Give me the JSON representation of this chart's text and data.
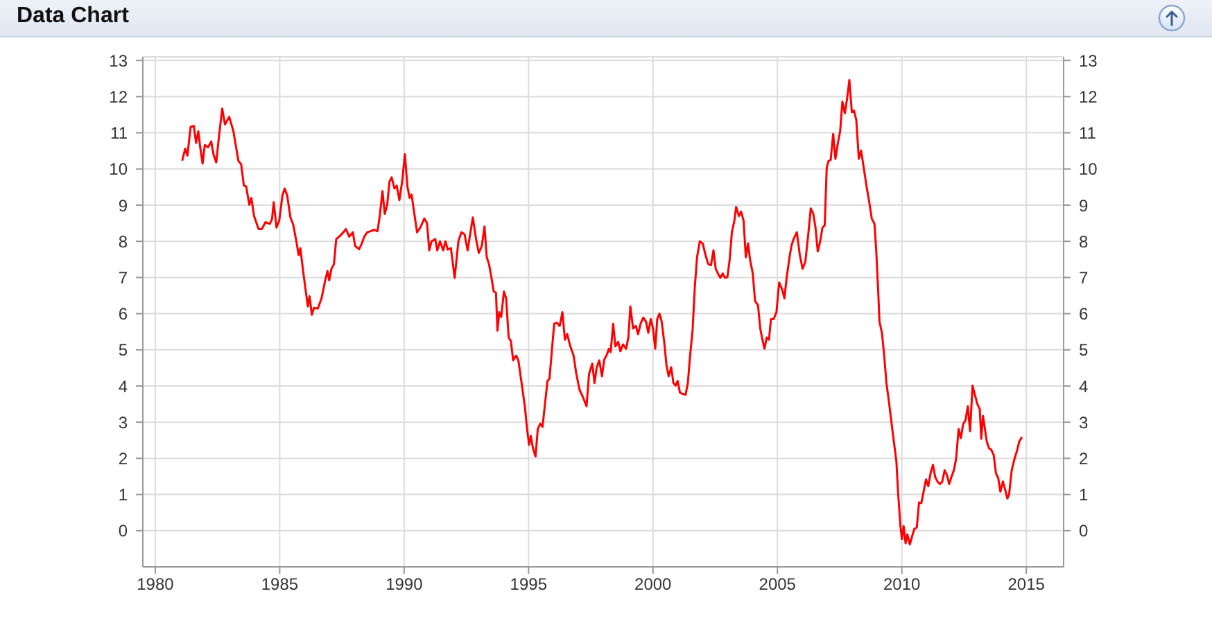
{
  "chart_data": {
    "type": "line",
    "title": "Data Chart",
    "x": [
      1981.09,
      1981.2,
      1981.29,
      1981.42,
      1981.55,
      1981.64,
      1981.73,
      1981.8,
      1981.9,
      1981.99,
      1982.12,
      1982.25,
      1982.34,
      1982.45,
      1982.56,
      1982.69,
      1982.8,
      1982.97,
      1983.14,
      1983.34,
      1983.45,
      1983.56,
      1983.65,
      1983.78,
      1983.86,
      1983.97,
      1984.15,
      1984.28,
      1984.43,
      1984.6,
      1984.69,
      1984.76,
      1984.87,
      1984.98,
      1985.11,
      1985.2,
      1985.3,
      1985.43,
      1985.54,
      1985.67,
      1985.76,
      1985.83,
      1985.94,
      1986.05,
      1986.13,
      1986.2,
      1986.29,
      1986.38,
      1986.53,
      1986.68,
      1986.81,
      1986.92,
      1986.99,
      1987.08,
      1987.18,
      1987.27,
      1987.42,
      1987.56,
      1987.66,
      1987.79,
      1987.94,
      1988.03,
      1988.19,
      1988.3,
      1988.4,
      1988.52,
      1988.65,
      1988.8,
      1988.93,
      1989.02,
      1989.13,
      1989.22,
      1989.32,
      1989.41,
      1989.5,
      1989.61,
      1989.7,
      1989.81,
      1989.92,
      1990.03,
      1990.13,
      1990.22,
      1990.3,
      1990.41,
      1990.52,
      1990.65,
      1990.81,
      1990.92,
      1991.01,
      1991.1,
      1991.25,
      1991.33,
      1991.44,
      1991.57,
      1991.66,
      1991.75,
      1991.88,
      1992.03,
      1992.18,
      1992.3,
      1992.43,
      1992.55,
      1992.76,
      1992.89,
      1993.0,
      1993.12,
      1993.23,
      1993.32,
      1993.41,
      1993.51,
      1993.6,
      1993.69,
      1993.75,
      1993.82,
      1993.9,
      1994.01,
      1994.1,
      1994.2,
      1994.29,
      1994.38,
      1994.5,
      1994.59,
      1994.72,
      1994.85,
      1994.94,
      1995.02,
      1995.09,
      1995.17,
      1995.28,
      1995.37,
      1995.47,
      1995.56,
      1995.65,
      1995.76,
      1995.84,
      1995.95,
      1996.03,
      1996.14,
      1996.25,
      1996.36,
      1996.46,
      1996.55,
      1996.68,
      1996.81,
      1996.92,
      1997.05,
      1997.18,
      1997.33,
      1997.43,
      1997.56,
      1997.65,
      1997.74,
      1997.84,
      1997.95,
      1998.04,
      1998.13,
      1998.23,
      1998.3,
      1998.4,
      1998.49,
      1998.6,
      1998.69,
      1998.79,
      1998.92,
      1999.01,
      1999.09,
      1999.2,
      1999.31,
      1999.4,
      1999.5,
      1999.61,
      1999.72,
      1999.81,
      1999.91,
      2000.0,
      2000.09,
      2000.17,
      2000.26,
      2000.35,
      2000.45,
      2000.54,
      2000.63,
      2000.73,
      2000.82,
      2000.91,
      2000.99,
      2001.08,
      2001.19,
      2001.31,
      2001.4,
      2001.49,
      2001.59,
      2001.68,
      2001.77,
      2001.88,
      2002.0,
      2002.11,
      2002.22,
      2002.33,
      2002.43,
      2002.52,
      2002.61,
      2002.71,
      2002.8,
      2002.89,
      2002.99,
      2003.08,
      2003.17,
      2003.27,
      2003.34,
      2003.45,
      2003.54,
      2003.64,
      2003.73,
      2003.82,
      2003.9,
      2004.01,
      2004.1,
      2004.22,
      2004.31,
      2004.38,
      2004.48,
      2004.57,
      2004.66,
      2004.74,
      2004.85,
      2004.96,
      2005.07,
      2005.19,
      2005.28,
      2005.37,
      2005.47,
      2005.56,
      2005.65,
      2005.78,
      2005.9,
      2006.01,
      2006.12,
      2006.23,
      2006.34,
      2006.44,
      2006.53,
      2006.62,
      2006.72,
      2006.81,
      2006.9,
      2006.98,
      2007.05,
      2007.14,
      2007.24,
      2007.33,
      2007.43,
      2007.52,
      2007.61,
      2007.71,
      2007.8,
      2007.89,
      2007.99,
      2008.08,
      2008.17,
      2008.27,
      2008.36,
      2008.47,
      2008.58,
      2008.69,
      2008.79,
      2008.9,
      2008.97,
      2009.05,
      2009.1,
      2009.2,
      2009.29,
      2009.38,
      2009.48,
      2009.57,
      2009.66,
      2009.78,
      2009.85,
      2009.94,
      2010.0,
      2010.07,
      2010.15,
      2010.22,
      2010.32,
      2010.41,
      2010.5,
      2010.6,
      2010.69,
      2010.78,
      2010.88,
      2010.97,
      2011.06,
      2011.16,
      2011.25,
      2011.34,
      2011.44,
      2011.53,
      2011.62,
      2011.72,
      2011.81,
      2011.9,
      2011.99,
      2012.09,
      2012.18,
      2012.28,
      2012.37,
      2012.46,
      2012.56,
      2012.65,
      2012.74,
      2012.84,
      2012.94,
      2013.04,
      2013.13,
      2013.19,
      2013.26,
      2013.33,
      2013.41,
      2013.5,
      2013.59,
      2013.69,
      2013.78,
      2013.87,
      2013.96,
      2014.06,
      2014.15,
      2014.24,
      2014.31,
      2014.41,
      2014.52,
      2014.63,
      2014.72,
      2014.81
    ],
    "series": [
      {
        "color": "#ff0000",
        "values": [
          10.25,
          10.56,
          10.37,
          11.16,
          11.19,
          10.72,
          11.04,
          10.63,
          10.15,
          10.66,
          10.6,
          10.76,
          10.4,
          10.18,
          10.9,
          11.67,
          11.23,
          11.44,
          11.04,
          10.22,
          10.13,
          9.54,
          9.52,
          9.01,
          9.2,
          8.7,
          8.34,
          8.34,
          8.53,
          8.48,
          8.61,
          9.08,
          8.38,
          8.57,
          9.27,
          9.46,
          9.27,
          8.66,
          8.47,
          8.0,
          7.62,
          7.81,
          7.18,
          6.61,
          6.2,
          6.48,
          5.97,
          6.16,
          6.14,
          6.42,
          6.86,
          7.18,
          6.92,
          7.24,
          7.37,
          8.06,
          8.15,
          8.25,
          8.34,
          8.13,
          8.25,
          7.87,
          7.78,
          7.94,
          8.13,
          8.25,
          8.28,
          8.32,
          8.28,
          8.7,
          9.39,
          8.76,
          9.01,
          9.65,
          9.77,
          9.46,
          9.54,
          9.14,
          9.65,
          10.41,
          9.52,
          9.2,
          9.29,
          8.76,
          8.25,
          8.38,
          8.63,
          8.5,
          7.75,
          8.0,
          8.06,
          7.75,
          8.0,
          7.75,
          8.0,
          7.77,
          7.81,
          6.99,
          8.0,
          8.25,
          8.19,
          7.75,
          8.66,
          8.06,
          7.68,
          7.87,
          8.41,
          7.56,
          7.37,
          6.99,
          6.61,
          6.58,
          5.53,
          6.04,
          5.91,
          6.61,
          6.42,
          5.34,
          5.24,
          4.71,
          4.84,
          4.71,
          4.08,
          3.44,
          2.81,
          2.37,
          2.62,
          2.3,
          2.05,
          2.81,
          2.96,
          2.87,
          3.44,
          4.14,
          4.2,
          5.09,
          5.72,
          5.75,
          5.66,
          6.04,
          5.28,
          5.44,
          5.09,
          4.84,
          4.33,
          3.89,
          3.7,
          3.44,
          4.33,
          4.62,
          4.08,
          4.52,
          4.71,
          4.27,
          4.73,
          4.84,
          5.03,
          4.94,
          5.72,
          5.09,
          5.22,
          4.96,
          5.15,
          5.03,
          5.34,
          6.2,
          5.59,
          5.66,
          5.43,
          5.72,
          5.89,
          5.78,
          5.47,
          5.85,
          5.59,
          5.03,
          5.85,
          6.0,
          5.78,
          5.22,
          4.58,
          4.27,
          4.52,
          4.08,
          4.01,
          4.14,
          3.82,
          3.78,
          3.76,
          4.08,
          4.84,
          5.53,
          6.73,
          7.56,
          8.0,
          7.94,
          7.62,
          7.37,
          7.34,
          7.75,
          7.24,
          7.11,
          6.99,
          7.11,
          6.99,
          7.01,
          7.49,
          8.25,
          8.57,
          8.95,
          8.7,
          8.82,
          8.57,
          7.56,
          7.94,
          7.49,
          7.11,
          6.35,
          6.23,
          5.59,
          5.34,
          5.03,
          5.34,
          5.28,
          5.85,
          5.85,
          6.04,
          6.86,
          6.67,
          6.42,
          6.99,
          7.49,
          7.87,
          8.06,
          8.25,
          7.62,
          7.24,
          7.43,
          8.13,
          8.91,
          8.76,
          8.38,
          7.72,
          8.0,
          8.38,
          8.44,
          10.03,
          10.22,
          10.25,
          10.97,
          10.28,
          10.72,
          11.04,
          11.86,
          11.54,
          11.95,
          12.46,
          11.57,
          11.61,
          11.35,
          10.28,
          10.51,
          10.03,
          9.52,
          9.08,
          8.63,
          8.48,
          7.75,
          6.61,
          5.78,
          5.47,
          4.84,
          4.08,
          3.57,
          3.06,
          2.56,
          1.92,
          1.04,
          0.15,
          -0.23,
          0.13,
          -0.35,
          -0.1,
          -0.38,
          -0.16,
          0.05,
          0.09,
          0.78,
          0.76,
          1.1,
          1.42,
          1.23,
          1.61,
          1.82,
          1.48,
          1.35,
          1.29,
          1.35,
          1.67,
          1.54,
          1.29,
          1.48,
          1.67,
          1.99,
          2.81,
          2.56,
          2.94,
          3.06,
          3.44,
          2.75,
          4.01,
          3.74,
          3.49,
          3.36,
          2.54,
          3.17,
          2.85,
          2.47,
          2.28,
          2.24,
          2.09,
          1.59,
          1.46,
          1.08,
          1.36,
          1.14,
          0.89,
          1.01,
          1.65,
          1.97,
          2.22,
          2.47,
          2.57
        ]
      }
    ],
    "xlim": [
      1979.5,
      2016.5
    ],
    "xticks": [
      1980,
      1985,
      1990,
      1995,
      2000,
      2005,
      2010,
      2015
    ],
    "ylim": [
      -1,
      13.1
    ],
    "yticks": [
      0,
      1,
      2,
      3,
      4,
      5,
      6,
      7,
      8,
      9,
      10,
      11,
      12,
      13
    ],
    "y2lim": [
      -1,
      13.1
    ],
    "y2ticks": [
      0,
      1,
      2,
      3,
      4,
      5,
      6,
      7,
      8,
      9,
      10,
      11,
      12,
      13
    ],
    "grid": true
  }
}
